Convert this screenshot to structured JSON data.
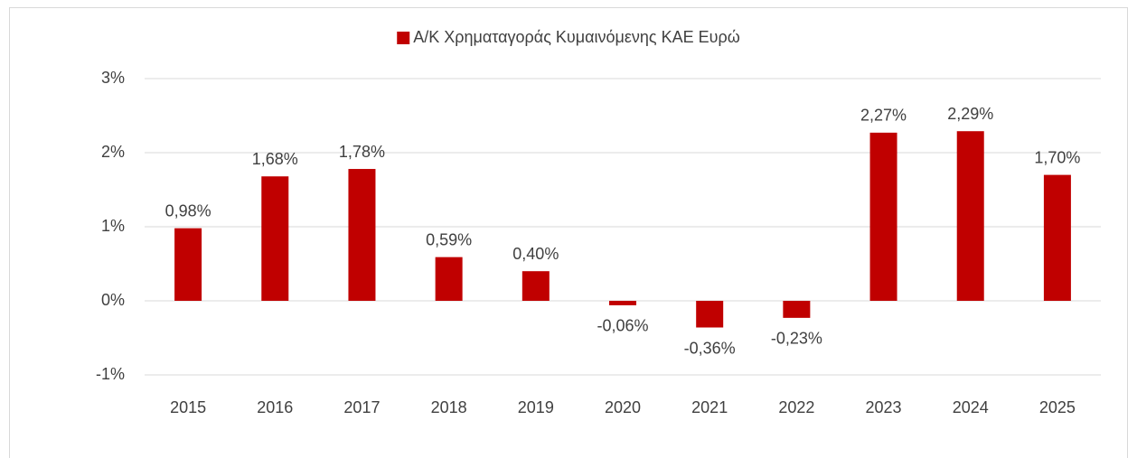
{
  "chart_data": {
    "type": "bar",
    "categories": [
      "2015",
      "2016",
      "2017",
      "2018",
      "2019",
      "2020",
      "2021",
      "2022",
      "2023",
      "2024",
      "2025"
    ],
    "series": [
      {
        "name": "Α/Κ Χρηματαγοράς Κυμαινόμενης ΚΑΕ Ευρώ",
        "color": "#c00000",
        "values": [
          0.98,
          1.68,
          1.78,
          0.59,
          0.4,
          -0.06,
          -0.36,
          -0.23,
          2.27,
          2.29,
          1.7
        ],
        "value_labels": [
          "0,98%",
          "1,68%",
          "1,78%",
          "0,59%",
          "0,40%",
          "-0,06%",
          "-0,36%",
          "-0,23%",
          "2,27%",
          "2,29%",
          "1,70%"
        ]
      }
    ],
    "ylim": [
      -1,
      3
    ],
    "yticks": [
      {
        "value": -1,
        "label": "-1%"
      },
      {
        "value": 0,
        "label": "0%"
      },
      {
        "value": 1,
        "label": "1%"
      },
      {
        "value": 2,
        "label": "2%"
      },
      {
        "value": 3,
        "label": "3%"
      }
    ],
    "grid": true,
    "legend": "top"
  }
}
